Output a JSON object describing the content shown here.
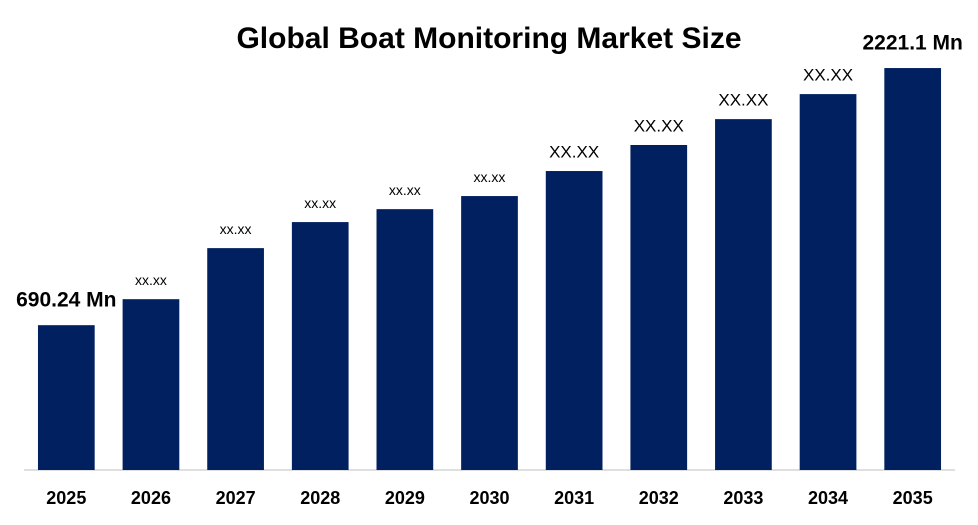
{
  "chart_data": {
    "type": "bar",
    "title": "Global Boat Monitoring Market Size",
    "categories": [
      "2025",
      "2026",
      "2027",
      "2028",
      "2029",
      "2030",
      "2031",
      "2032",
      "2033",
      "2034",
      "2035"
    ],
    "values": [
      690.24,
      845,
      1149,
      1304,
      1381,
      1459,
      1608,
      1763,
      1917,
      2066,
      2221.1
    ],
    "value_labels": [
      "690.24 Mn",
      "xx.xx",
      "xx.xx",
      "xx.xx",
      "xx.xx",
      "xx.xx",
      "XX.XX",
      "XX.XX",
      "XX.XX",
      "XX.XX",
      "2221.1 Mn"
    ],
    "color": "#002060",
    "ylim": [
      -172,
      2400
    ]
  }
}
